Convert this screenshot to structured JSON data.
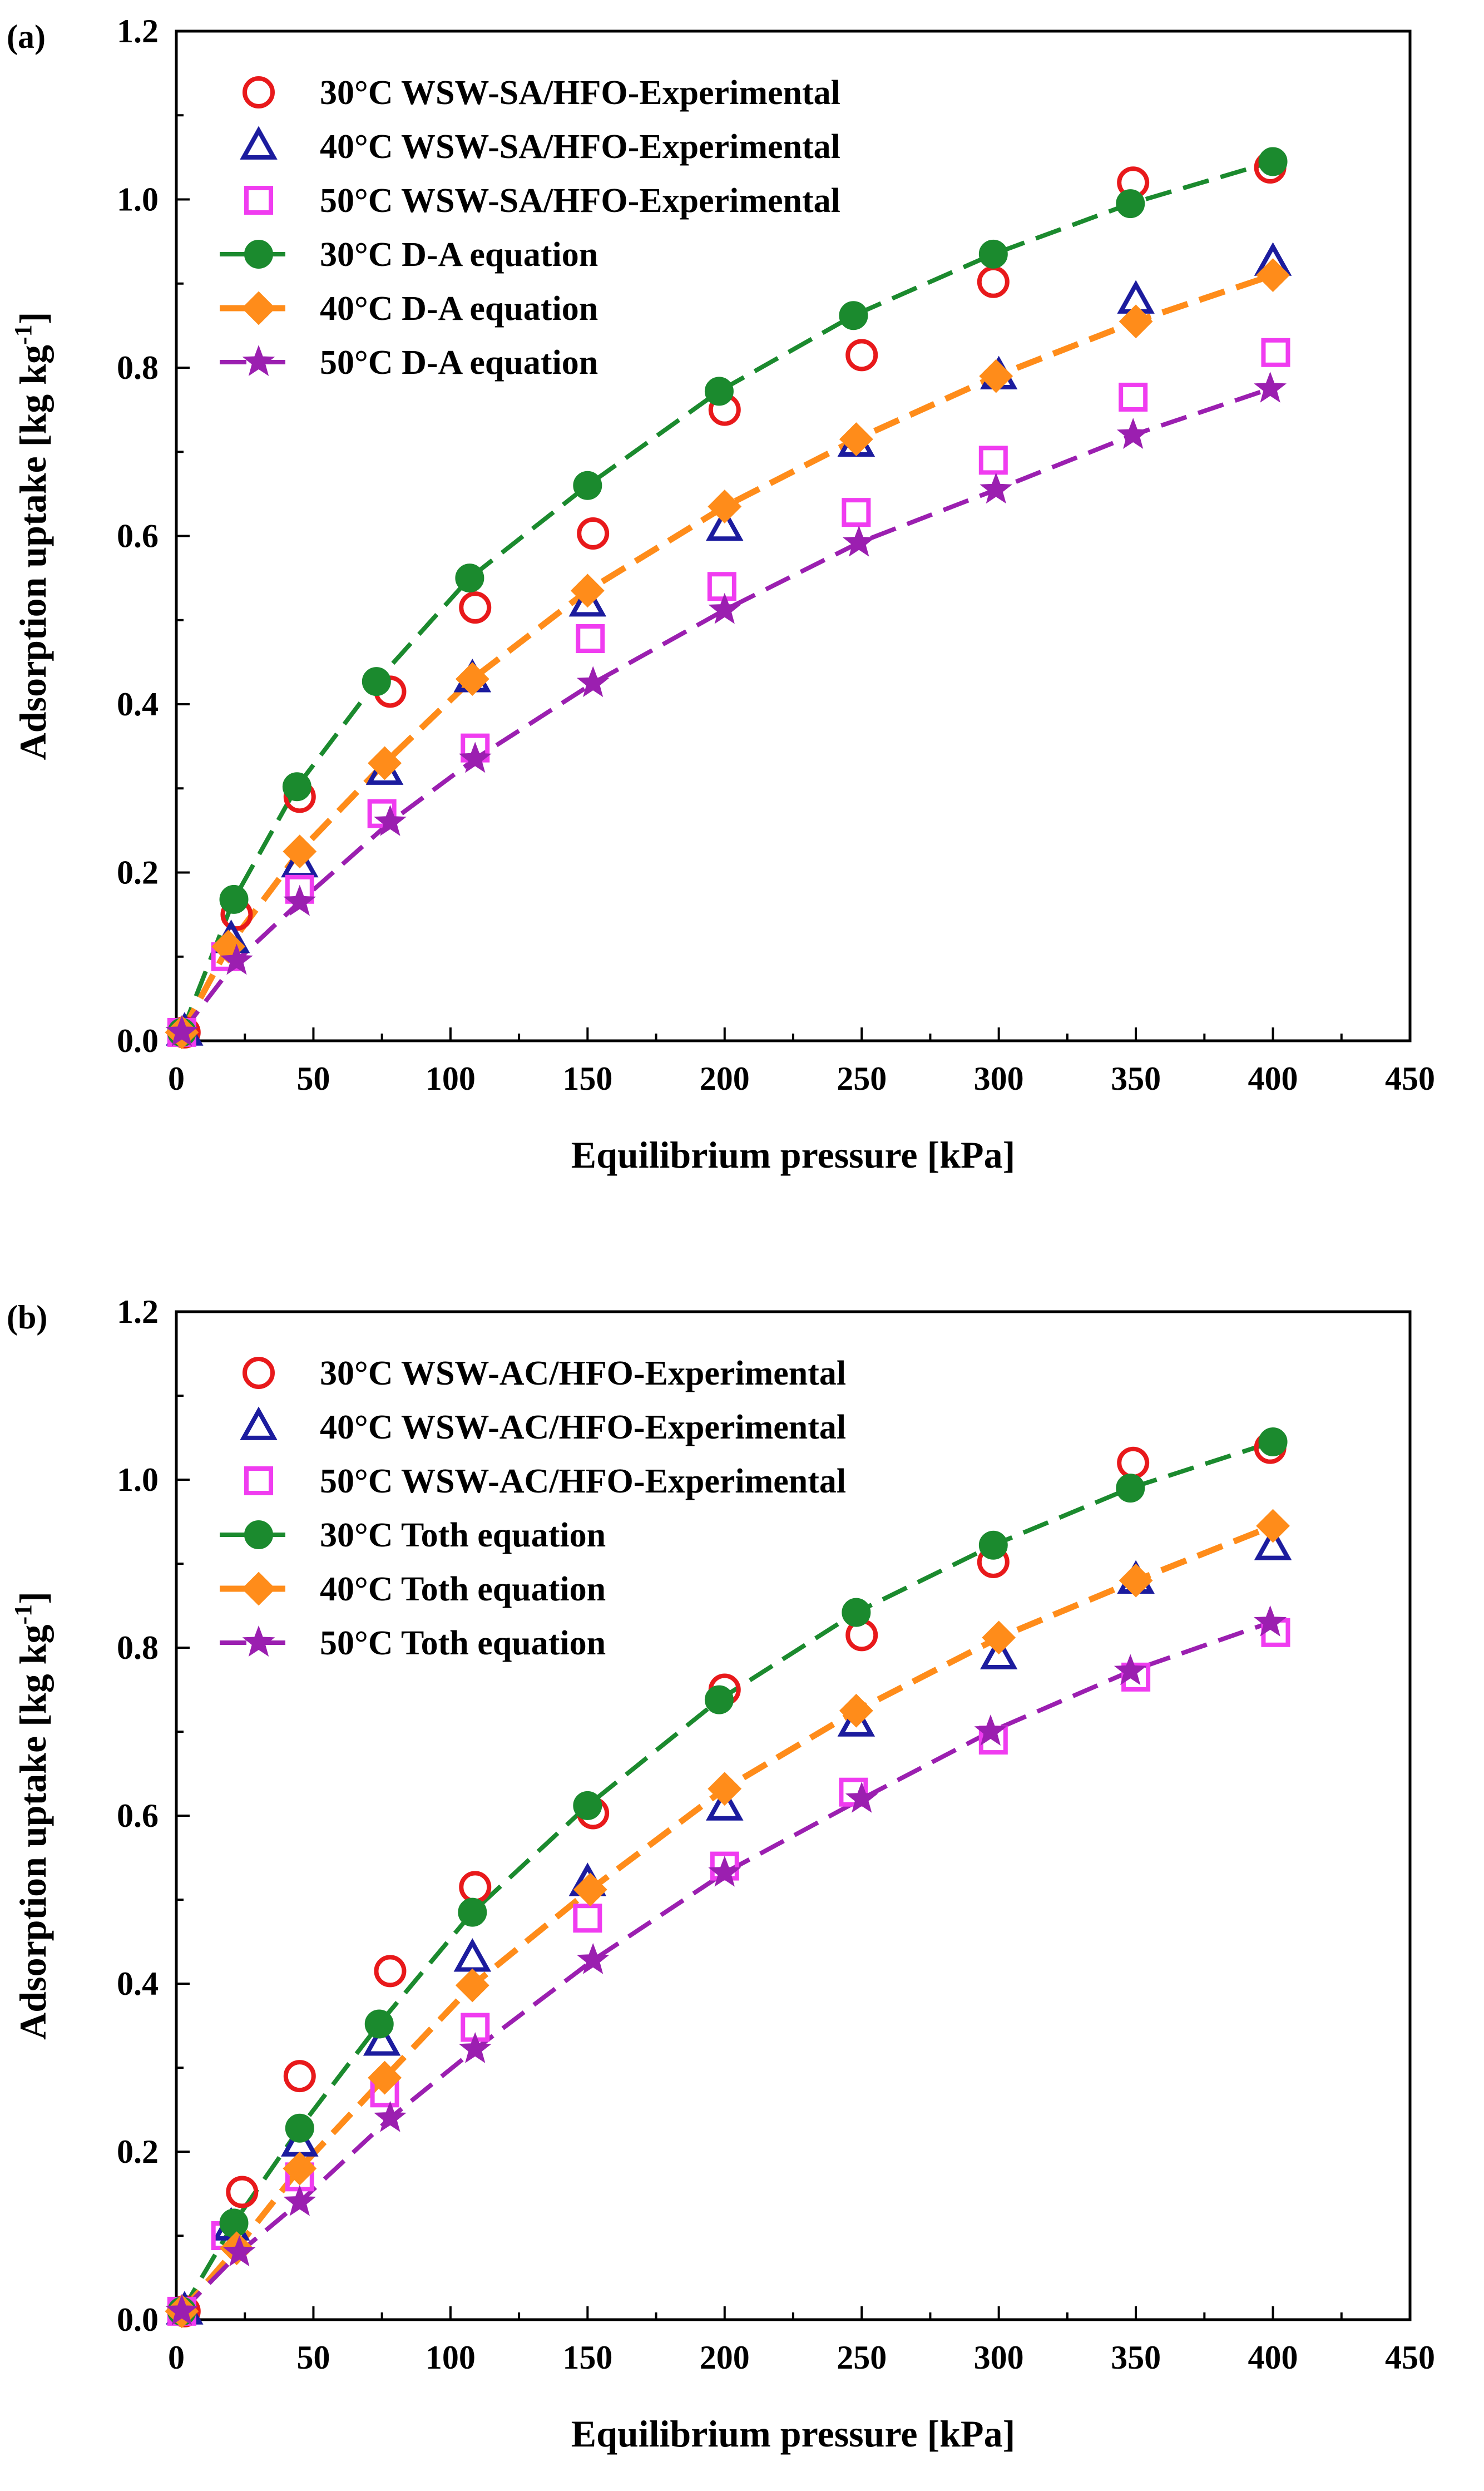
{
  "chart_data": [
    {
      "type": "scatter",
      "panel_label": "(a)",
      "title": "",
      "xlabel": "Equilibrium pressure [kPa]",
      "ylabel_main": "Adsorption uptake [kg kg",
      "ylabel_sup": "-1",
      "ylabel_end": "]",
      "xlim": [
        0,
        450
      ],
      "ylim": [
        0,
        1.2
      ],
      "x_ticks": [
        "0",
        "50",
        "100",
        "150",
        "200",
        "250",
        "300",
        "350",
        "400",
        "450"
      ],
      "y_ticks": [
        "0.0",
        "0.2",
        "0.4",
        "0.6",
        "0.8",
        "1.0",
        "1.2"
      ],
      "x_tick_values": [
        0,
        50,
        100,
        150,
        200,
        250,
        300,
        350,
        400,
        450
      ],
      "y_tick_values": [
        0,
        0.2,
        0.4,
        0.6,
        0.8,
        1.0,
        1.2
      ],
      "grid": false,
      "legend_position": "top-left",
      "series": [
        {
          "name": "30°C WSW-SA/HFO-Experimental",
          "marker": "circle",
          "color": "#e8191b",
          "line": "none",
          "x": [
            3,
            22,
            45,
            78,
            109,
            152,
            200,
            250,
            298,
            349,
            399
          ],
          "y": [
            0.01,
            0.15,
            0.29,
            0.415,
            0.515,
            0.603,
            0.75,
            0.815,
            0.902,
            1.02,
            1.038
          ]
        },
        {
          "name": "40°C WSW-SA/HFO-Experimental",
          "marker": "triangle",
          "color": "#1c1c9e",
          "line": "none",
          "x": [
            3,
            20,
            45,
            76,
            108,
            150,
            200,
            248,
            300,
            350,
            400
          ],
          "y": [
            0.01,
            0.12,
            0.21,
            0.32,
            0.43,
            0.52,
            0.61,
            0.71,
            0.79,
            0.88,
            0.925
          ]
        },
        {
          "name": "50°C WSW-SA/HFO-Experimental",
          "marker": "square",
          "color": "#f03cf0",
          "line": "none",
          "x": [
            2,
            18,
            45,
            75,
            109,
            151,
            199,
            248,
            298,
            349,
            401
          ],
          "y": [
            0.01,
            0.1,
            0.18,
            0.27,
            0.348,
            0.478,
            0.54,
            0.628,
            0.69,
            0.765,
            0.818
          ]
        },
        {
          "name": "30°C D-A equation",
          "marker": "filled-circle",
          "color": "#1b8a2e",
          "line": "dashed",
          "x": [
            2,
            21,
            44,
            73,
            107,
            150,
            198,
            247,
            298,
            348,
            400
          ],
          "y": [
            0.01,
            0.168,
            0.302,
            0.427,
            0.55,
            0.66,
            0.772,
            0.862,
            0.935,
            0.995,
            1.045
          ]
        },
        {
          "name": "40°C D-A equation",
          "marker": "diamond",
          "color": "#ff8c1a",
          "line": "dashed",
          "x": [
            2,
            19,
            45,
            76,
            108,
            150,
            200,
            248,
            299,
            350,
            400
          ],
          "y": [
            0.01,
            0.112,
            0.225,
            0.33,
            0.43,
            0.535,
            0.635,
            0.715,
            0.79,
            0.855,
            0.91
          ]
        },
        {
          "name": "50°C D-A equation",
          "marker": "star",
          "color": "#9b1fb0",
          "line": "dashed",
          "x": [
            2,
            22,
            45,
            78,
            109,
            152,
            200,
            249,
            299,
            349,
            399
          ],
          "y": [
            0.01,
            0.095,
            0.165,
            0.26,
            0.335,
            0.425,
            0.512,
            0.592,
            0.655,
            0.72,
            0.775
          ]
        }
      ]
    },
    {
      "type": "scatter",
      "panel_label": "(b)",
      "title": "",
      "xlabel": "Equilibrium pressure [kPa]",
      "ylabel_main": "Adsorption uptake [kg kg",
      "ylabel_sup": "-1",
      "ylabel_end": "]",
      "xlim": [
        0,
        450
      ],
      "ylim": [
        0,
        1.2
      ],
      "x_ticks": [
        "0",
        "50",
        "100",
        "150",
        "200",
        "250",
        "300",
        "350",
        "400",
        "450"
      ],
      "y_ticks": [
        "0.0",
        "0.2",
        "0.4",
        "0.6",
        "0.8",
        "1.0",
        "1.2"
      ],
      "x_tick_values": [
        0,
        50,
        100,
        150,
        200,
        250,
        300,
        350,
        400,
        450
      ],
      "y_tick_values": [
        0,
        0.2,
        0.4,
        0.6,
        0.8,
        1.0,
        1.2
      ],
      "grid": false,
      "legend_position": "top-left",
      "series": [
        {
          "name": "30°C WSW-AC/HFO-Experimental",
          "marker": "circle",
          "color": "#e8191b",
          "line": "none",
          "x": [
            3,
            24,
            45,
            78,
            109,
            152,
            200,
            250,
            298,
            349,
            399
          ],
          "y": [
            0.01,
            0.152,
            0.29,
            0.415,
            0.515,
            0.603,
            0.75,
            0.815,
            0.902,
            1.02,
            1.038
          ]
        },
        {
          "name": "40°C WSW-AC/HFO-Experimental",
          "marker": "triangle",
          "color": "#1c1c9e",
          "line": "none",
          "x": [
            3,
            20,
            45,
            75,
            108,
            150,
            200,
            248,
            300,
            350,
            400
          ],
          "y": [
            0.01,
            0.11,
            0.21,
            0.33,
            0.43,
            0.52,
            0.61,
            0.71,
            0.79,
            0.88,
            0.92
          ]
        },
        {
          "name": "50°C WSW-AC/HFO-Experimental",
          "marker": "square",
          "color": "#f03cf0",
          "line": "none",
          "x": [
            2,
            18,
            45,
            76,
            109,
            150,
            200,
            247,
            298,
            350,
            401
          ],
          "y": [
            0.01,
            0.1,
            0.17,
            0.27,
            0.348,
            0.478,
            0.54,
            0.628,
            0.69,
            0.765,
            0.818
          ]
        },
        {
          "name": "30°C Toth equation",
          "marker": "filled-circle",
          "color": "#1b8a2e",
          "line": "dashed",
          "x": [
            2,
            21,
            45,
            74,
            108,
            150,
            198,
            248,
            298,
            348,
            400
          ],
          "y": [
            0.01,
            0.115,
            0.228,
            0.352,
            0.485,
            0.612,
            0.738,
            0.842,
            0.922,
            0.99,
            1.045
          ]
        },
        {
          "name": "40°C Toth equation",
          "marker": "diamond",
          "color": "#ff8c1a",
          "line": "dashed",
          "x": [
            2,
            22,
            45,
            76,
            108,
            151,
            200,
            248,
            300,
            350,
            400
          ],
          "y": [
            0.01,
            0.085,
            0.18,
            0.288,
            0.398,
            0.512,
            0.632,
            0.725,
            0.812,
            0.88,
            0.945
          ]
        },
        {
          "name": "50°C Toth equation",
          "marker": "star",
          "color": "#9b1fb0",
          "line": "dashed",
          "x": [
            2,
            23,
            45,
            78,
            109,
            152,
            200,
            250,
            297,
            348,
            399
          ],
          "y": [
            0.01,
            0.08,
            0.14,
            0.24,
            0.322,
            0.428,
            0.532,
            0.62,
            0.7,
            0.772,
            0.83
          ]
        }
      ]
    }
  ]
}
